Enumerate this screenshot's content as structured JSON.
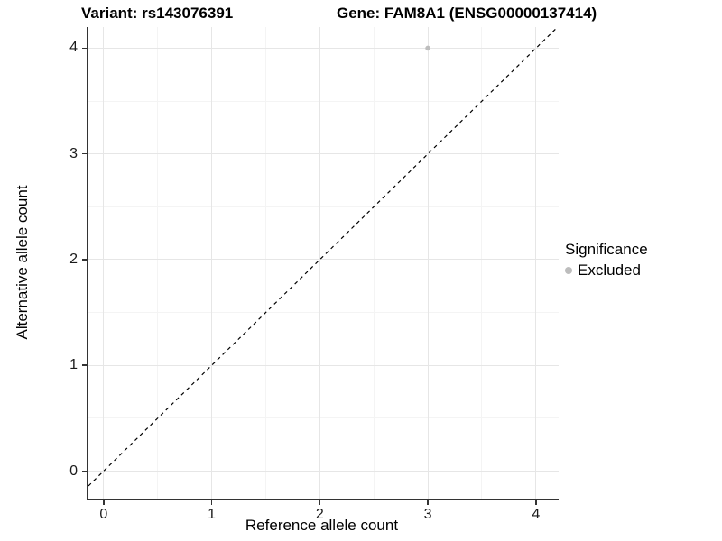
{
  "chart_data": {
    "type": "scatter",
    "title_left": "Variant: rs143076391",
    "title_right": "Gene: FAM8A1 (ENSG00000137414)",
    "xlabel": "Reference allele count",
    "ylabel": "Alternative allele count",
    "xlim": [
      -0.14,
      4.21
    ],
    "ylim": [
      -0.26,
      4.2
    ],
    "x_ticks": [
      0,
      1,
      2,
      3,
      4
    ],
    "y_ticks": [
      0,
      1,
      2,
      3,
      4
    ],
    "x_minor_ticks": [
      0.5,
      1.5,
      2.5,
      3.5
    ],
    "y_minor_ticks": [
      0.5,
      1.5,
      2.5,
      3.5
    ],
    "grid": "major+minor",
    "points": [
      {
        "x": 3,
        "y": 4,
        "series": "Excluded"
      }
    ],
    "reference_line": {
      "slope": 1,
      "intercept": 0,
      "style": "dashed",
      "color": "#000000"
    },
    "legend": {
      "title": "Significance",
      "position": "right",
      "items": [
        {
          "label": "Excluded",
          "color": "#bdbdbd"
        }
      ]
    },
    "colors": {
      "point": "#bdbdbd",
      "grid_major": "#e6e6e6",
      "grid_minor": "#f4f4f4",
      "axis_line": "#333333",
      "background": "#ffffff"
    }
  }
}
